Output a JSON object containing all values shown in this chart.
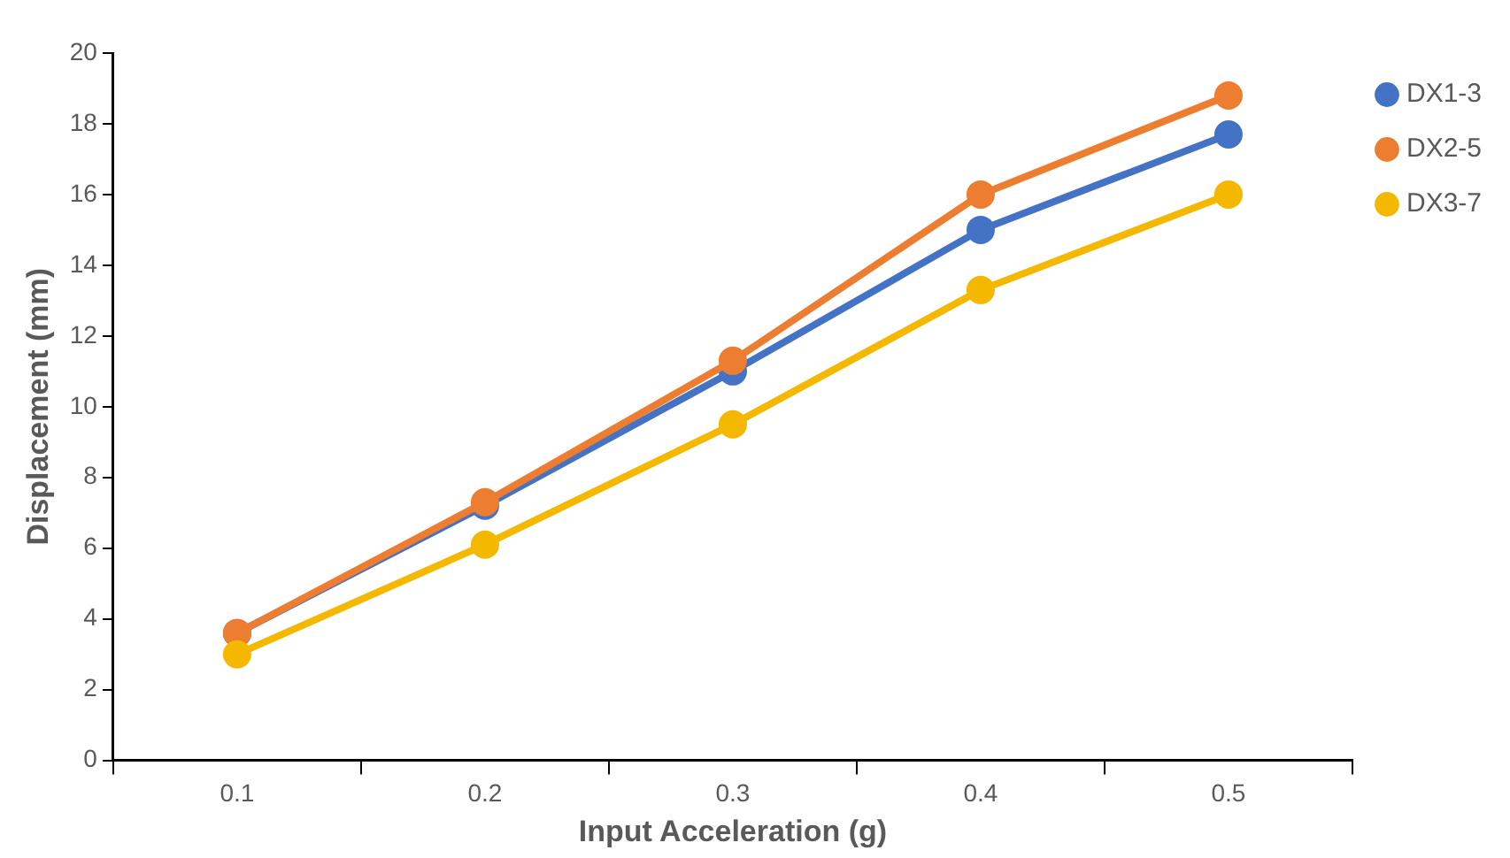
{
  "chart_data": {
    "type": "line",
    "xlabel": "Input Acceleration (g)",
    "ylabel": "Displacement (mm)",
    "categories": [
      "0.1",
      "0.2",
      "0.3",
      "0.4",
      "0.5"
    ],
    "series": [
      {
        "name": "DX1-3",
        "color": "#4472c4",
        "values": [
          3.6,
          7.2,
          11.0,
          15.0,
          17.7
        ]
      },
      {
        "name": "DX2-5",
        "color": "#ed7d31",
        "values": [
          3.6,
          7.3,
          11.3,
          16.0,
          18.8
        ]
      },
      {
        "name": "DX3-7",
        "color": "#f5b800",
        "values": [
          3.0,
          6.1,
          9.5,
          13.3,
          16.0
        ]
      }
    ],
    "ylim": [
      0,
      20
    ],
    "yticks": [
      0,
      2,
      4,
      6,
      8,
      10,
      12,
      14,
      16,
      18,
      20
    ],
    "grid": false,
    "legend": "top right",
    "marker": "circle",
    "line_style": "solid"
  }
}
